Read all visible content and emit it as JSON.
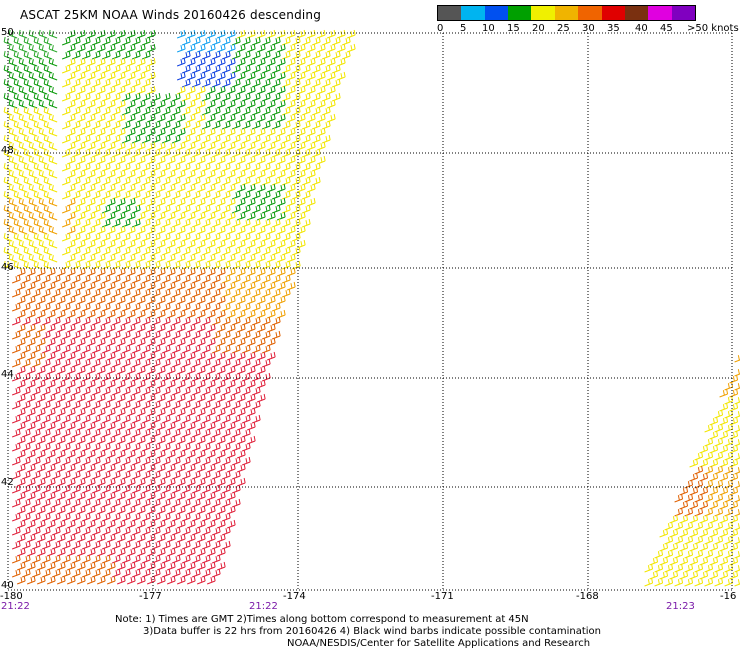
{
  "title": "ASCAT 25KM NOAA Winds 20160426 descending",
  "legend": {
    "swatches": [
      "#555555",
      "#00b4f0",
      "#0050f0",
      "#00a000",
      "#f0f000",
      "#f0b400",
      "#f06400",
      "#e00000",
      "#7a3010",
      "#e000e0",
      "#8000c0"
    ],
    "labels": [
      "0",
      "5",
      "10",
      "15",
      "20",
      "25",
      "30",
      "35",
      "40",
      "45",
      ">50 knots"
    ]
  },
  "map": {
    "lat_labels": [
      "50",
      "48",
      "46",
      "44",
      "42",
      "40"
    ],
    "lon_labels": [
      "-180",
      "-177",
      "-174",
      "-171",
      "-168",
      "-16"
    ],
    "time_labels": [
      "21:22",
      "21:22",
      "21:23"
    ],
    "grid_color": "#000000"
  },
  "notes": [
    "Note: 1) Times are GMT 2)Times along bottom correspond to measurement at 45N",
    "3)Data buffer is 22 hrs from 20160426 4) Black wind barbs indicate possible contamination",
    "NOAA/NESDIS/Center for Satellite Applications and Research"
  ]
}
